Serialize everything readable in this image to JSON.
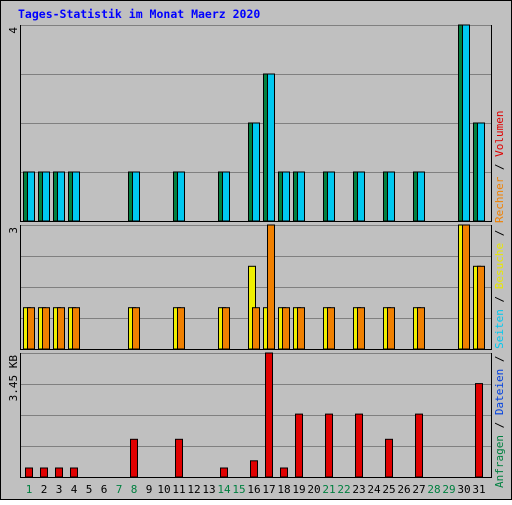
{
  "chart_data": {
    "type": "bar",
    "title": "Tages-Statistik im Monat Maerz 2020",
    "days": [
      "1",
      "2",
      "3",
      "4",
      "5",
      "6",
      "7",
      "8",
      "9",
      "10",
      "11",
      "12",
      "13",
      "14",
      "15",
      "16",
      "17",
      "18",
      "19",
      "20",
      "21",
      "22",
      "23",
      "24",
      "25",
      "26",
      "27",
      "28",
      "29",
      "30",
      "31"
    ],
    "weekend_days": [
      "1",
      "7",
      "8",
      "14",
      "15",
      "21",
      "22",
      "28",
      "29"
    ],
    "panels": [
      {
        "id": "requests",
        "ymax": 4,
        "ytick": "4",
        "series": [
          {
            "name": "Anfragen",
            "color": "#008040",
            "values": [
              1,
              1,
              1,
              1,
              0,
              0,
              0,
              1,
              0,
              0,
              1,
              0,
              0,
              1,
              0,
              2,
              3,
              1,
              1,
              0,
              1,
              0,
              1,
              0,
              1,
              0,
              1,
              0,
              0,
              4,
              2
            ]
          },
          {
            "name": "Dateien",
            "color": "#00c8f0",
            "values": [
              1,
              1,
              1,
              1,
              0,
              0,
              0,
              1,
              0,
              0,
              1,
              0,
              0,
              1,
              0,
              2,
              3,
              1,
              1,
              0,
              1,
              0,
              1,
              0,
              1,
              0,
              1,
              0,
              0,
              4,
              2
            ]
          }
        ]
      },
      {
        "id": "visits",
        "ymax": 3,
        "ytick": "3",
        "series": [
          {
            "name": "Seiten",
            "color": "#00c8f0",
            "values": []
          },
          {
            "name": "Besuche",
            "color": "#f0f000",
            "values": [
              1,
              1,
              1,
              1,
              0,
              0,
              0,
              1,
              0,
              0,
              1,
              0,
              0,
              1,
              0,
              2,
              1,
              1,
              1,
              0,
              1,
              0,
              1,
              0,
              1,
              0,
              1,
              0,
              0,
              3,
              2
            ]
          },
          {
            "name": "Rechner",
            "color": "#f08000",
            "values": [
              1,
              1,
              1,
              1,
              0,
              0,
              0,
              1,
              0,
              0,
              1,
              0,
              0,
              1,
              0,
              1,
              3,
              1,
              1,
              0,
              1,
              0,
              1,
              0,
              1,
              0,
              1,
              0,
              0,
              3,
              2
            ]
          }
        ]
      },
      {
        "id": "volume",
        "ymax": 3.45,
        "ytick": "3.45 KB",
        "series": [
          {
            "name": "Volumen",
            "color": "#e00000",
            "values": [
              0.25,
              0.25,
              0.25,
              0.25,
              0,
              0,
              0,
              1.05,
              0,
              0,
              1.05,
              0,
              0,
              0.25,
              0,
              0.45,
              3.45,
              0.25,
              1.75,
              0,
              1.75,
              0,
              1.75,
              0,
              1.05,
              0,
              1.75,
              0,
              0,
              0,
              2.6
            ]
          }
        ]
      }
    ],
    "legend": [
      {
        "text": "Anfragen",
        "color": "#008040"
      },
      {
        "text": "Dateien",
        "color": "#0040e0"
      },
      {
        "text": "Seiten",
        "color": "#00c8f0"
      },
      {
        "text": "Besuche",
        "color": "#e8e800"
      },
      {
        "text": "Rechner",
        "color": "#f08000"
      },
      {
        "text": "Volumen",
        "color": "#e00000"
      }
    ],
    "legend_separator": " / ",
    "colors": {
      "background": "#c0c0c0",
      "title": "#0000ff",
      "weekday": "#000000",
      "weekend": "#008040",
      "grid": "#808080"
    }
  }
}
